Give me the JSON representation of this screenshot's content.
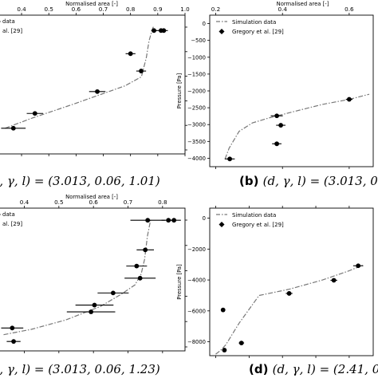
{
  "chart_data": [
    {
      "id": "a",
      "type": "scatter",
      "x_top_label": "Normalised area [-]",
      "x_top_ticks": [
        "0.4",
        "0.5",
        "0.6",
        "0.7",
        "0.8",
        "0.9",
        "1.0"
      ],
      "x_top_tick_values": [
        0.4,
        0.5,
        0.6,
        0.7,
        0.8,
        0.9,
        1.0
      ],
      "legend": [
        "data",
        "al. [29]"
      ],
      "caption_text": "′, γ, l) = (3.013, 0.06, 1.01)",
      "series": [
        {
          "name": "data",
          "kind": "line",
          "x": [
            0.34,
            0.44,
            0.58,
            0.7,
            0.78,
            0.84,
            0.858,
            0.868,
            0.88,
            0.886
          ],
          "y": [
            0.2,
            0.28,
            0.38,
            0.47,
            0.53,
            0.6,
            0.75,
            0.88,
            0.97,
            1.0
          ]
        },
        {
          "name": "al. [29]",
          "kind": "errorbar",
          "points": [
            {
              "x": 0.37,
              "xerr": 0.045,
              "y": 0.2
            },
            {
              "x": 0.449,
              "xerr": 0.03,
              "y": 0.315
            },
            {
              "x": 0.678,
              "xerr": 0.03,
              "y": 0.485
            },
            {
              "x": 0.839,
              "xerr": 0.018,
              "y": 0.645
            },
            {
              "x": 0.8,
              "xerr": 0.018,
              "y": 0.78
            },
            {
              "x": 0.886,
              "xerr": 0.01,
              "y": 0.96
            },
            {
              "x": 0.912,
              "xerr": 0.018,
              "y": 0.96
            },
            {
              "x": 0.922,
              "xerr": 0.015,
              "y": 0.96
            }
          ]
        }
      ]
    },
    {
      "id": "b",
      "type": "scatter",
      "x_top_label": "Normalised area [-]",
      "x_top_ticks": [
        "0.2",
        "0.4",
        "0.6"
      ],
      "x_top_tick_values": [
        0.2,
        0.4,
        0.6
      ],
      "ylabel": "Pressure [Pa]",
      "y_ticks": [
        "0",
        "−500",
        "−1000",
        "−1500",
        "−2000",
        "−2500",
        "−3000",
        "−3500",
        "−4000"
      ],
      "y_tick_values": [
        0,
        -500,
        -1000,
        -1500,
        -2000,
        -2500,
        -3000,
        -3500,
        -4000
      ],
      "legend": [
        "Simulation data",
        "Gregory et al. [29]"
      ],
      "caption_label": "(b)",
      "caption_text": "(d, γ, l) = (3.013, 0.06.",
      "series": [
        {
          "name": "Simulation data",
          "kind": "line",
          "x": [
            0.228,
            0.24,
            0.27,
            0.31,
            0.36,
            0.44,
            0.52,
            0.6,
            0.66
          ],
          "y": [
            -4020,
            -3700,
            -3200,
            -2950,
            -2800,
            -2600,
            -2400,
            -2250,
            -2100
          ]
        },
        {
          "name": "Gregory et al. [29]",
          "kind": "errorbar",
          "points": [
            {
              "x": 0.242,
              "xerr": 0.015,
              "y": -4020
            },
            {
              "x": 0.383,
              "xerr": 0.018,
              "y": -2740
            },
            {
              "x": 0.395,
              "xerr": 0.014,
              "y": -3020
            },
            {
              "x": 0.383,
              "xerr": 0.014,
              "y": -3570
            },
            {
              "x": 0.6,
              "xerr": 0.01,
              "y": -2250
            }
          ]
        }
      ]
    },
    {
      "id": "c",
      "type": "scatter",
      "x_top_label": "Normalised area [-]",
      "x_top_ticks": [
        "0.4",
        "0.5",
        "0.6",
        "0.7",
        "0.8"
      ],
      "x_top_tick_values": [
        0.4,
        0.5,
        0.6,
        0.7,
        0.8
      ],
      "legend": [
        "data",
        "al. [29]"
      ],
      "caption_text": "′, γ, l) = (3.013, 0.06, 1.23)",
      "series": [
        {
          "name": "data",
          "kind": "line",
          "x": [
            0.34,
            0.42,
            0.52,
            0.62,
            0.68,
            0.72,
            0.738,
            0.748,
            0.756,
            0.766
          ],
          "y": [
            0.12,
            0.16,
            0.23,
            0.33,
            0.42,
            0.49,
            0.57,
            0.68,
            0.85,
            0.98
          ]
        },
        {
          "name": "al. [29]",
          "kind": "errorbar",
          "points": [
            {
              "x": 0.365,
              "xerr": 0.032,
              "y": 0.17
            },
            {
              "x": 0.369,
              "xerr": 0.02,
              "y": 0.07
            },
            {
              "x": 0.593,
              "xerr": 0.07,
              "y": 0.29
            },
            {
              "x": 0.603,
              "xerr": 0.055,
              "y": 0.34
            },
            {
              "x": 0.657,
              "xerr": 0.045,
              "y": 0.43
            },
            {
              "x": 0.735,
              "xerr": 0.045,
              "y": 0.54
            },
            {
              "x": 0.725,
              "xerr": 0.03,
              "y": 0.63
            },
            {
              "x": 0.75,
              "xerr": 0.025,
              "y": 0.75
            },
            {
              "x": 0.757,
              "xerr": 0.05,
              "y": 0.97
            },
            {
              "x": 0.817,
              "xerr": 0.02,
              "y": 0.97
            },
            {
              "x": 0.833,
              "xerr": 0.02,
              "y": 0.97
            }
          ]
        }
      ]
    },
    {
      "id": "d",
      "type": "scatter",
      "ylabel": "Pressure [Pa]",
      "y_ticks": [
        "0",
        "−2000",
        "−4000",
        "−6000",
        "−8000"
      ],
      "y_tick_values": [
        0,
        -2000,
        -4000,
        -6000,
        -8000
      ],
      "legend": [
        "Simulation data",
        "Gregory et al. [29]"
      ],
      "caption_label": "(d)",
      "caption_text": "(d, γ, l) = (2.41, 0.06, 1.",
      "series": [
        {
          "name": "Simulation data",
          "kind": "line",
          "x": [
            0.2,
            0.215,
            0.23,
            0.27,
            0.33,
            0.42,
            0.52,
            0.6,
            0.64
          ],
          "y": [
            -8800,
            -8550,
            -8200,
            -6800,
            -5000,
            -4600,
            -4000,
            -3400,
            -3050
          ]
        },
        {
          "name": "Gregory et al. [29]",
          "kind": "errorbar",
          "points": [
            {
              "x": 0.222,
              "xerr": 0.006,
              "y": -5940
            },
            {
              "x": 0.226,
              "xerr": 0.006,
              "y": -8540
            },
            {
              "x": 0.277,
              "xerr": 0.008,
              "y": -8080
            },
            {
              "x": 0.42,
              "xerr": 0.01,
              "y": -4870
            },
            {
              "x": 0.554,
              "xerr": 0.01,
              "y": -4020
            },
            {
              "x": 0.627,
              "xerr": 0.015,
              "y": -3080
            }
          ]
        }
      ]
    }
  ]
}
